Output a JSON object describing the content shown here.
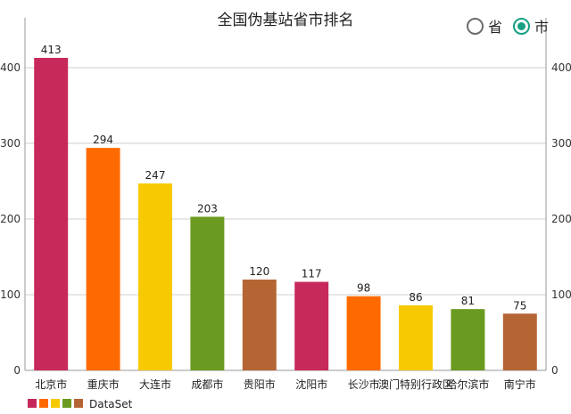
{
  "chart_data": {
    "type": "bar",
    "title": "全国伪基站省市排名",
    "categories": [
      "北京市",
      "重庆市",
      "大连市",
      "成都市",
      "贵阳市",
      "沈阳市",
      "长沙市",
      "澳门特别行政区",
      "哈尔滨市",
      "南宁市"
    ],
    "values": [
      413,
      294,
      247,
      203,
      120,
      117,
      98,
      86,
      81,
      75
    ],
    "colors": [
      "#c72a5a",
      "#ff6a00",
      "#f7c900",
      "#6a9a1f",
      "#b56534",
      "#c72a5a",
      "#ff6a00",
      "#f7c900",
      "#6a9a1f",
      "#b56534"
    ],
    "legend_colors": [
      "#c72a5a",
      "#ff6a00",
      "#f7c900",
      "#6a9a1f",
      "#b56534"
    ],
    "ylim": [
      0,
      413
    ],
    "yticks": [
      0,
      100,
      200,
      300,
      400
    ],
    "grid": true,
    "dual_y_axis": true,
    "legend": {
      "label": "DataSet",
      "placement": "bottom-left"
    }
  },
  "options": {
    "items": [
      {
        "label": "省",
        "checked": false
      },
      {
        "label": "市",
        "checked": true
      }
    ]
  }
}
